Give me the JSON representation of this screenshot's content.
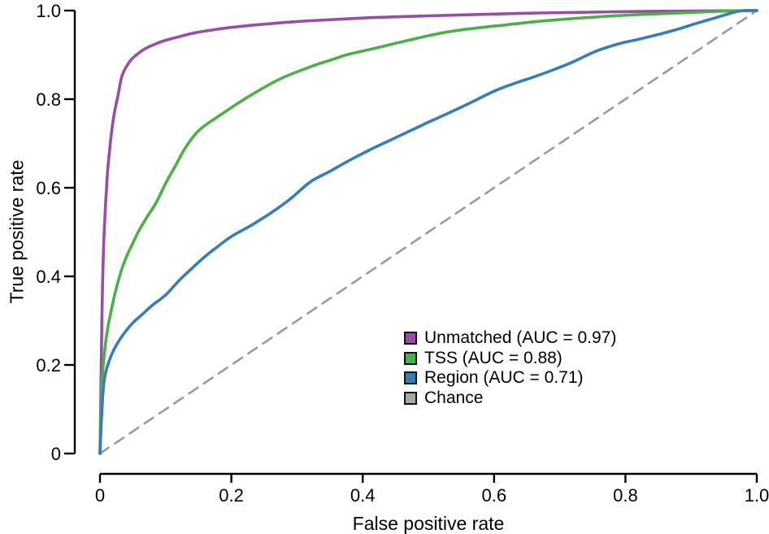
{
  "chart_data": {
    "type": "line",
    "title": "",
    "xlabel": "False positive rate",
    "ylabel": "True positive rate",
    "xlim": [
      0,
      1
    ],
    "ylim": [
      0,
      1
    ],
    "grid": false,
    "axis_color": "#000000",
    "xticks": {
      "values": [
        0,
        0.2,
        0.4,
        0.6,
        0.8,
        1.0
      ],
      "labels": [
        "0",
        "0.2",
        "0.4",
        "0.6",
        "0.8",
        "1.0"
      ]
    },
    "yticks": {
      "values": [
        0,
        0.2,
        0.4,
        0.6,
        0.8,
        1.0
      ],
      "labels": [
        "0",
        "0.2",
        "0.4",
        "0.6",
        "0.8",
        "1.0"
      ]
    },
    "legend": {
      "position": "lower-right",
      "entries": [
        {
          "label": "Unmatched (AUC = 0.97)",
          "color": "#984ea3"
        },
        {
          "label": "TSS (AUC = 0.88)",
          "color": "#4daf4a"
        },
        {
          "label": "Region (AUC = 0.71)",
          "color": "#377eb8"
        },
        {
          "label": "Chance",
          "color": "#a8a8a8"
        }
      ]
    },
    "series": [
      {
        "name": "Chance",
        "auc": null,
        "color": "#9a9a9a",
        "style": "dashed",
        "points": [
          [
            0,
            0
          ],
          [
            1,
            1
          ]
        ]
      },
      {
        "name": "Unmatched",
        "auc": 0.97,
        "color": "#984ea3",
        "style": "solid",
        "points": [
          [
            0,
            0
          ],
          [
            0.001,
            0.1
          ],
          [
            0.002,
            0.21
          ],
          [
            0.003,
            0.31
          ],
          [
            0.004,
            0.385
          ],
          [
            0.005,
            0.44
          ],
          [
            0.006,
            0.485
          ],
          [
            0.008,
            0.55
          ],
          [
            0.01,
            0.6
          ],
          [
            0.012,
            0.645
          ],
          [
            0.015,
            0.69
          ],
          [
            0.018,
            0.73
          ],
          [
            0.022,
            0.77
          ],
          [
            0.027,
            0.805
          ],
          [
            0.033,
            0.85
          ],
          [
            0.04,
            0.873
          ],
          [
            0.048,
            0.89
          ],
          [
            0.058,
            0.903
          ],
          [
            0.07,
            0.915
          ],
          [
            0.085,
            0.925
          ],
          [
            0.1,
            0.933
          ],
          [
            0.12,
            0.941
          ],
          [
            0.145,
            0.95
          ],
          [
            0.17,
            0.956
          ],
          [
            0.2,
            0.962
          ],
          [
            0.24,
            0.968
          ],
          [
            0.28,
            0.973
          ],
          [
            0.32,
            0.977
          ],
          [
            0.37,
            0.981
          ],
          [
            0.43,
            0.985
          ],
          [
            0.5,
            0.988
          ],
          [
            0.57,
            0.991
          ],
          [
            0.65,
            0.994
          ],
          [
            0.73,
            0.996
          ],
          [
            0.82,
            0.998
          ],
          [
            0.9,
            0.999
          ],
          [
            1,
            1
          ]
        ]
      },
      {
        "name": "TSS",
        "auc": 0.88,
        "color": "#4daf4a",
        "style": "solid",
        "points": [
          [
            0,
            0
          ],
          [
            0.001,
            0.07
          ],
          [
            0.002,
            0.12
          ],
          [
            0.003,
            0.16
          ],
          [
            0.005,
            0.2
          ],
          [
            0.007,
            0.23
          ],
          [
            0.009,
            0.255
          ],
          [
            0.012,
            0.285
          ],
          [
            0.016,
            0.315
          ],
          [
            0.021,
            0.35
          ],
          [
            0.027,
            0.385
          ],
          [
            0.034,
            0.42
          ],
          [
            0.042,
            0.45
          ],
          [
            0.05,
            0.475
          ],
          [
            0.06,
            0.505
          ],
          [
            0.072,
            0.535
          ],
          [
            0.085,
            0.565
          ],
          [
            0.1,
            0.61
          ],
          [
            0.115,
            0.65
          ],
          [
            0.13,
            0.69
          ],
          [
            0.151,
            0.73
          ],
          [
            0.186,
            0.767
          ],
          [
            0.223,
            0.803
          ],
          [
            0.272,
            0.844
          ],
          [
            0.322,
            0.874
          ],
          [
            0.355,
            0.89
          ],
          [
            0.375,
            0.9
          ],
          [
            0.41,
            0.912
          ],
          [
            0.45,
            0.926
          ],
          [
            0.49,
            0.94
          ],
          [
            0.53,
            0.952
          ],
          [
            0.57,
            0.96
          ],
          [
            0.62,
            0.968
          ],
          [
            0.67,
            0.976
          ],
          [
            0.72,
            0.982
          ],
          [
            0.77,
            0.987
          ],
          [
            0.82,
            0.991
          ],
          [
            0.87,
            0.994
          ],
          [
            0.92,
            0.997
          ],
          [
            0.96,
            0.999
          ],
          [
            1,
            1
          ]
        ]
      },
      {
        "name": "Region",
        "auc": 0.71,
        "color": "#377eb8",
        "style": "solid",
        "points": [
          [
            0,
            0
          ],
          [
            0.002,
            0.07
          ],
          [
            0.004,
            0.125
          ],
          [
            0.006,
            0.16
          ],
          [
            0.009,
            0.185
          ],
          [
            0.013,
            0.205
          ],
          [
            0.019,
            0.228
          ],
          [
            0.027,
            0.25
          ],
          [
            0.037,
            0.272
          ],
          [
            0.05,
            0.295
          ],
          [
            0.065,
            0.315
          ],
          [
            0.08,
            0.335
          ],
          [
            0.1,
            0.358
          ],
          [
            0.12,
            0.39
          ],
          [
            0.14,
            0.418
          ],
          [
            0.16,
            0.445
          ],
          [
            0.18,
            0.468
          ],
          [
            0.2,
            0.49
          ],
          [
            0.23,
            0.515
          ],
          [
            0.26,
            0.543
          ],
          [
            0.29,
            0.575
          ],
          [
            0.32,
            0.613
          ],
          [
            0.35,
            0.637
          ],
          [
            0.38,
            0.662
          ],
          [
            0.41,
            0.685
          ],
          [
            0.44,
            0.706
          ],
          [
            0.47,
            0.727
          ],
          [
            0.5,
            0.748
          ],
          [
            0.53,
            0.768
          ],
          [
            0.56,
            0.789
          ],
          [
            0.6,
            0.818
          ],
          [
            0.63,
            0.835
          ],
          [
            0.66,
            0.85
          ],
          [
            0.69,
            0.866
          ],
          [
            0.72,
            0.884
          ],
          [
            0.755,
            0.908
          ],
          [
            0.79,
            0.925
          ],
          [
            0.82,
            0.935
          ],
          [
            0.85,
            0.946
          ],
          [
            0.88,
            0.958
          ],
          [
            0.91,
            0.972
          ],
          [
            0.94,
            0.985
          ],
          [
            0.965,
            0.996
          ],
          [
            0.98,
            1.0
          ],
          [
            1,
            1
          ]
        ]
      }
    ]
  }
}
